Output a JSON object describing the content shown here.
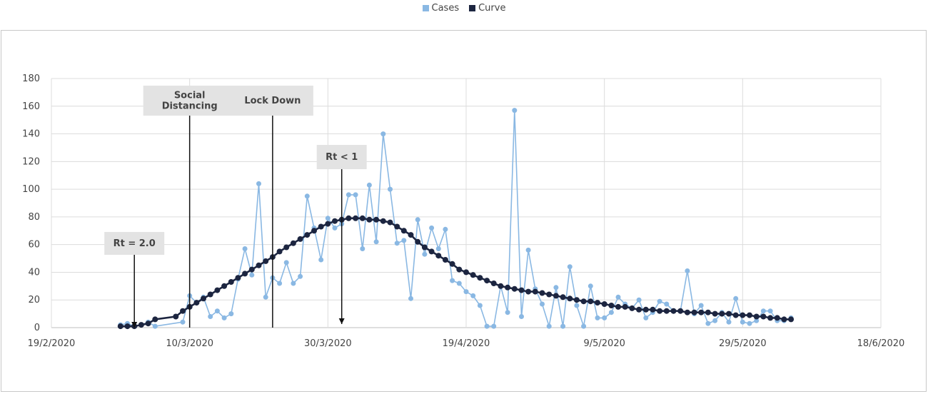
{
  "colors": {
    "cases": "#8ab8e3",
    "curve": "#1c2540",
    "grid": "#dcdcdc",
    "annotation_bg": "#e3e3e3"
  },
  "legend": {
    "cases": "Cases",
    "curve": "Curve"
  },
  "chart_data": {
    "type": "line",
    "title": "",
    "xlabel": "",
    "ylabel": "",
    "ylim": [
      0,
      180
    ],
    "xlim": [
      "19/2/2020",
      "18/6/2020"
    ],
    "grid": true,
    "legend_position": "top",
    "y_ticks": [
      "0",
      "20",
      "40",
      "60",
      "80",
      "100",
      "120",
      "140",
      "160",
      "180"
    ],
    "x_ticks": [
      "19/2/2020",
      "10/3/2020",
      "30/3/2020",
      "19/4/2020",
      "9/5/2020",
      "29/5/2020",
      "18/6/2020"
    ],
    "series": [
      {
        "name": "Cases",
        "start_date": "29/2/2020",
        "x_interval_days": 1,
        "values": [
          2,
          3,
          1,
          2,
          4,
          1,
          null,
          null,
          null,
          4,
          23,
          18,
          22,
          8,
          12,
          7,
          10,
          35,
          57,
          38,
          104,
          22,
          36,
          32,
          47,
          32,
          37,
          95,
          72,
          49,
          79,
          72,
          75,
          96,
          96,
          57,
          103,
          62,
          140,
          100,
          61,
          63,
          21,
          78,
          53,
          72,
          57,
          71,
          34,
          32,
          26,
          23,
          16,
          1,
          1,
          30,
          11,
          157,
          8,
          56,
          28,
          17,
          1,
          29,
          1,
          44,
          16,
          1,
          30,
          7,
          7,
          11,
          22,
          17,
          14,
          20,
          7,
          11,
          19,
          17,
          12,
          12,
          41,
          10,
          16,
          3,
          5,
          11,
          4,
          21,
          4,
          3,
          5,
          12,
          12,
          5,
          5,
          7
        ]
      },
      {
        "name": "Curve",
        "start_date": "29/2/2020",
        "x_interval_days": 1,
        "values": [
          1,
          1,
          1,
          2,
          3,
          6,
          null,
          null,
          8,
          12,
          15,
          18,
          21,
          24,
          27,
          30,
          33,
          36,
          39,
          42,
          45,
          48,
          51,
          55,
          58,
          61,
          64,
          67,
          70,
          73,
          75,
          77,
          78,
          79,
          79,
          79,
          78,
          78,
          77,
          76,
          73,
          70,
          67,
          62,
          58,
          55,
          52,
          49,
          46,
          42,
          40,
          38,
          36,
          34,
          32,
          30,
          29,
          28,
          27,
          26,
          26,
          25,
          24,
          23,
          22,
          21,
          20,
          19,
          19,
          18,
          17,
          16,
          15,
          15,
          14,
          13,
          13,
          13,
          12,
          12,
          12,
          12,
          11,
          11,
          11,
          11,
          10,
          10,
          10,
          9,
          9,
          9,
          8,
          8,
          7,
          7,
          6,
          6
        ]
      }
    ],
    "annotations": [
      {
        "label": "Rt = 2.0",
        "date": "2/3/2020",
        "arrow": "down"
      },
      {
        "label": "Social\nDistancing",
        "date": "10/3/2020",
        "arrow": "none"
      },
      {
        "label": "Lock Down",
        "date": "22/3/2020",
        "arrow": "none"
      },
      {
        "label": "Rt < 1",
        "date": "1/4/2020",
        "arrow": "down"
      }
    ]
  }
}
